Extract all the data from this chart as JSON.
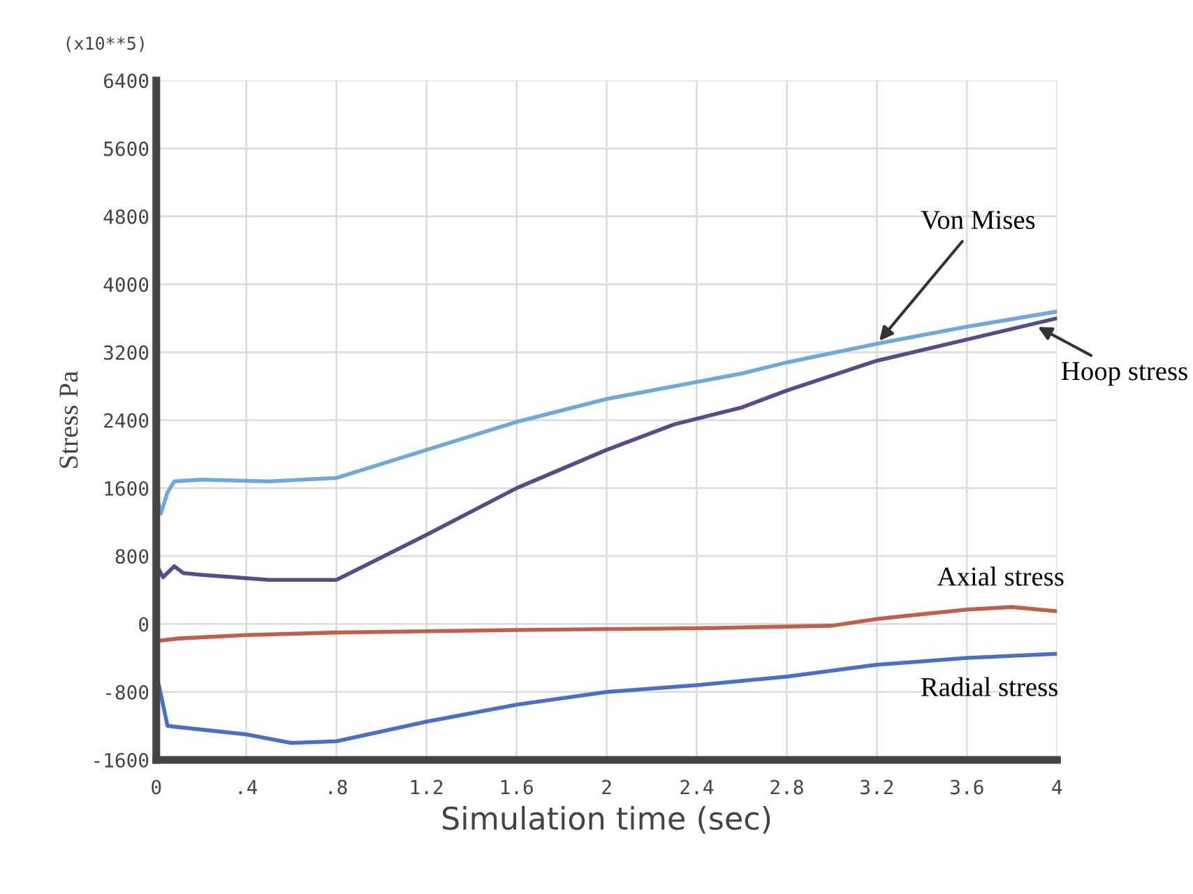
{
  "chart_data": {
    "type": "line",
    "xlabel": "Simulation time (sec)",
    "ylabel": "Stress Pa",
    "annotations": [
      "(x10**5)"
    ],
    "xlim": [
      0,
      4
    ],
    "ylim": [
      -1600,
      6400
    ],
    "xticks": [
      0,
      {
        "value": 0.4,
        "label": ".4"
      },
      {
        "value": 0.8,
        "label": ".8"
      },
      1.2,
      1.6,
      2,
      2.4,
      2.8,
      3.2,
      3.6,
      4
    ],
    "yticks": [
      -1600,
      -800,
      0,
      800,
      1600,
      2400,
      3200,
      4000,
      4800,
      5600,
      6400
    ],
    "grid": true,
    "legend": false,
    "series": [
      {
        "name": "Von Mises",
        "color": "#6fa8dc",
        "x": [
          0,
          0.02,
          0.05,
          0.08,
          0.2,
          0.5,
          0.8,
          1.2,
          1.6,
          2.0,
          2.3,
          2.6,
          2.8,
          3.2,
          3.6,
          4.0
        ],
        "values": [
          1550,
          1300,
          1550,
          1680,
          1700,
          1680,
          1720,
          2050,
          2380,
          2650,
          2800,
          2950,
          3080,
          3300,
          3500,
          3680
        ]
      },
      {
        "name": "Hoop stress",
        "color": "#5b4a8a",
        "x": [
          0,
          0.03,
          0.08,
          0.12,
          0.2,
          0.5,
          0.8,
          1.2,
          1.6,
          2.0,
          2.3,
          2.6,
          2.8,
          3.2,
          3.6,
          4.0
        ],
        "values": [
          700,
          550,
          680,
          600,
          580,
          520,
          520,
          1050,
          1600,
          2050,
          2350,
          2550,
          2750,
          3100,
          3350,
          3600
        ]
      },
      {
        "name": "Axial stress",
        "color": "#c0604a",
        "x": [
          0,
          0.1,
          0.4,
          0.8,
          1.6,
          2.4,
          3.0,
          3.2,
          3.6,
          3.8,
          4.0
        ],
        "values": [
          -200,
          -170,
          -130,
          -100,
          -70,
          -50,
          -20,
          60,
          170,
          200,
          150
        ]
      },
      {
        "name": "Radial stress",
        "color": "#4a6fc8",
        "x": [
          0,
          0.01,
          0.05,
          0.4,
          0.6,
          0.8,
          1.2,
          1.6,
          2.0,
          2.4,
          2.8,
          3.2,
          3.6,
          4.0
        ],
        "values": [
          -900,
          -700,
          -1200,
          -1300,
          -1400,
          -1380,
          -1150,
          -950,
          -800,
          -720,
          -620,
          -480,
          -400,
          -350
        ]
      }
    ]
  }
}
